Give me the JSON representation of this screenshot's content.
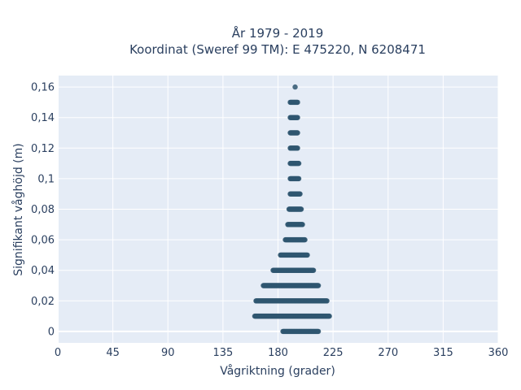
{
  "chart_data": {
    "type": "scatter",
    "title_line1": "År 1979 - 2019",
    "title_line2": "Koordinat (Sweref 99 TM): E 475220, N 6208471",
    "xlabel": "Vågriktning (grader)",
    "ylabel": "Signifikant våghöjd (m)",
    "xlim": [
      0,
      360
    ],
    "ylim": [
      -0.0075,
      0.1675
    ],
    "xticks": [
      0,
      45,
      90,
      135,
      180,
      225,
      270,
      315,
      360
    ],
    "xtick_labels": [
      "0",
      "45",
      "90",
      "135",
      "180",
      "225",
      "270",
      "315",
      "360"
    ],
    "yticks": [
      0,
      0.02,
      0.04,
      0.06,
      0.08,
      0.1,
      0.12,
      0.14,
      0.16
    ],
    "ytick_labels": [
      "0",
      "0,02",
      "0,04",
      "0,06",
      "0,08",
      "0,1",
      "0,12",
      "0,14",
      "0,16"
    ],
    "grid": true,
    "marker_color": "#2f5670",
    "background_color": "#e5ecf6",
    "point_bands": [
      {
        "y": 0.0,
        "x_min": 184,
        "x_max": 213
      },
      {
        "y": 0.01,
        "x_min": 161,
        "x_max": 222
      },
      {
        "y": 0.02,
        "x_min": 162,
        "x_max": 220
      },
      {
        "y": 0.03,
        "x_min": 168,
        "x_max": 213
      },
      {
        "y": 0.04,
        "x_min": 176,
        "x_max": 209
      },
      {
        "y": 0.05,
        "x_min": 182,
        "x_max": 204
      },
      {
        "y": 0.06,
        "x_min": 186,
        "x_max": 202
      },
      {
        "y": 0.07,
        "x_min": 188,
        "x_max": 200
      },
      {
        "y": 0.08,
        "x_min": 189,
        "x_max": 199
      },
      {
        "y": 0.09,
        "x_min": 190,
        "x_max": 198
      },
      {
        "y": 0.1,
        "x_min": 190,
        "x_max": 197
      },
      {
        "y": 0.11,
        "x_min": 190,
        "x_max": 197
      },
      {
        "y": 0.12,
        "x_min": 190,
        "x_max": 196
      },
      {
        "y": 0.13,
        "x_min": 190,
        "x_max": 196
      },
      {
        "y": 0.14,
        "x_min": 190,
        "x_max": 196
      },
      {
        "y": 0.15,
        "x_min": 190,
        "x_max": 196
      },
      {
        "y": 0.16,
        "x_min": 194,
        "x_max": 194
      }
    ]
  }
}
